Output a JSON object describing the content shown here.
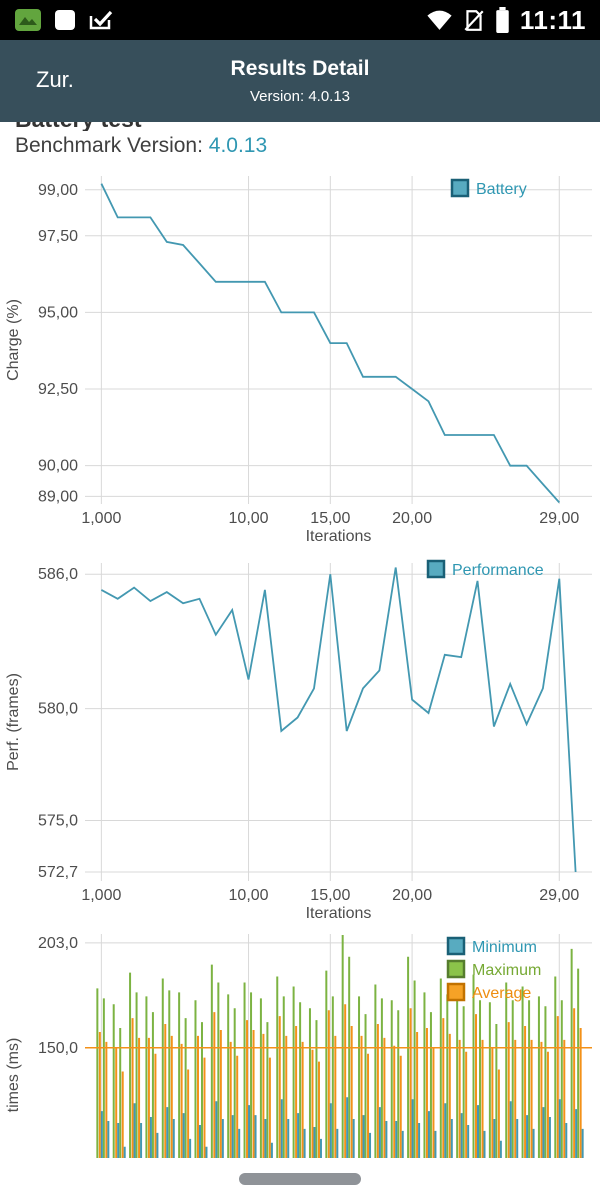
{
  "status_bar": {
    "time": "11:11",
    "left_icons": [
      "app-green-icon",
      "screenshot-square-icon",
      "check-task-icon"
    ],
    "right_icons": [
      "wifi-icon",
      "no-sim-icon",
      "battery-icon"
    ]
  },
  "app_bar": {
    "back_label": "Zur.",
    "title": "Results Detail",
    "subtitle": "Version: 4.0.13"
  },
  "page": {
    "clipped_heading": "Battery test",
    "benchmark_label": "Benchmark Version: ",
    "benchmark_value": "4.0.13"
  },
  "colors": {
    "app_bar": "#374f5b",
    "accent_teal": "#2f97b2",
    "grid": "#d8d8d8",
    "axis_text": "#4d4d4d",
    "series": {
      "teal": {
        "line": "#4398b1",
        "fill": "#58abc0",
        "border": "#1a6076",
        "text": "#2f97b2"
      },
      "green": {
        "line": "#7cb342",
        "fill": "#8bc34a",
        "border": "#567d2e",
        "text": "#76a934"
      },
      "orange": {
        "line": "#f39119",
        "fill": "#f6a226",
        "border": "#c27200",
        "text": "#ee8d10"
      }
    }
  },
  "chart_data": [
    {
      "id": "battery",
      "type": "line",
      "title": "",
      "ylabel": "Charge (%)",
      "xlabel": "Iterations",
      "legend": [
        {
          "label": "Battery",
          "color": "teal"
        }
      ],
      "ylim": [
        88.75,
        99.45
      ],
      "xlim": [
        0,
        31
      ],
      "x_start": 1,
      "yticks": [
        {
          "v": 99.0,
          "label": "99,00"
        },
        {
          "v": 97.5,
          "label": "97,50"
        },
        {
          "v": 95.0,
          "label": "95,00"
        },
        {
          "v": 92.5,
          "label": "92,50"
        },
        {
          "v": 90.0,
          "label": "90,00"
        },
        {
          "v": 89.0,
          "label": "89,00"
        }
      ],
      "xticks": [
        {
          "v": 1,
          "label": "1,000"
        },
        {
          "v": 10,
          "label": "10,00"
        },
        {
          "v": 15,
          "label": "15,00"
        },
        {
          "v": 20,
          "label": "20,00"
        },
        {
          "v": 29,
          "label": "29,00"
        }
      ],
      "series": [
        {
          "name": "Battery",
          "color": "teal",
          "values": [
            99.2,
            98.1,
            98.1,
            98.1,
            97.3,
            97.2,
            96.6,
            96.0,
            96.0,
            96.0,
            96.0,
            95.0,
            95.0,
            95.0,
            94.0,
            94.0,
            92.9,
            92.9,
            92.9,
            92.5,
            92.1,
            91.0,
            91.0,
            91.0,
            91.0,
            90.0,
            90.0,
            89.4,
            88.8
          ]
        }
      ]
    },
    {
      "id": "performance",
      "type": "line",
      "title": "",
      "ylabel": "Perf. (frames)",
      "xlabel": "Iterations",
      "legend": [
        {
          "label": "Performance",
          "color": "teal"
        }
      ],
      "ylim": [
        572.3,
        586.5
      ],
      "xlim": [
        0,
        31
      ],
      "x_start": 1,
      "yticks": [
        {
          "v": 586.0,
          "label": "586,0"
        },
        {
          "v": 580.0,
          "label": "580,0"
        },
        {
          "v": 575.0,
          "label": "575,0"
        },
        {
          "v": 572.7,
          "label": "572,7"
        }
      ],
      "xticks": [
        {
          "v": 1,
          "label": "1,000"
        },
        {
          "v": 10,
          "label": "10,00"
        },
        {
          "v": 15,
          "label": "15,00"
        },
        {
          "v": 20,
          "label": "20,00"
        },
        {
          "v": 29,
          "label": "29,00"
        }
      ],
      "series": [
        {
          "name": "Performance",
          "color": "teal",
          "values": [
            585.3,
            584.9,
            585.4,
            584.8,
            585.2,
            584.7,
            584.9,
            583.3,
            584.4,
            581.3,
            585.3,
            579.0,
            579.6,
            580.9,
            586.0,
            579.0,
            580.9,
            581.7,
            586.3,
            580.4,
            579.8,
            582.4,
            582.3,
            585.7,
            579.2,
            581.1,
            579.3,
            580.9,
            585.8,
            572.7
          ]
        }
      ]
    },
    {
      "id": "frametimes",
      "type": "impulse",
      "title": "",
      "ylabel": "times (ms)",
      "xlabel": "",
      "legend": [
        {
          "label": "Minimum",
          "color": "teal"
        },
        {
          "label": "Maximum",
          "color": "green"
        },
        {
          "label": "Average",
          "color": "orange"
        }
      ],
      "ylim": [
        65,
        207.5
      ],
      "xlim": [
        0,
        31
      ],
      "x_start": 1,
      "yticks": [
        {
          "v": 203.0,
          "label": "203,0"
        },
        {
          "v": 150.0,
          "label": "150,0"
        }
      ],
      "xticks": [
        {
          "v": 1
        },
        {
          "v": 10
        },
        {
          "v": 15
        },
        {
          "v": 20
        },
        {
          "v": 29
        }
      ],
      "hline": {
        "v": 150,
        "color": "orange"
      },
      "series": [
        {
          "name": "Maximum",
          "color": "green",
          "values": [
            180,
            172,
            188,
            176,
            185,
            178,
            174,
            192,
            177,
            183,
            175,
            186,
            181,
            170,
            189,
            207,
            176,
            182,
            174,
            196,
            178,
            185,
            177,
            187,
            173,
            183,
            181,
            176,
            186,
            200
          ]
        },
        {
          "name": "Average",
          "color": "orange",
          "values": [
            158,
            150,
            165,
            155,
            162,
            152,
            156,
            168,
            153,
            164,
            157,
            166,
            161,
            149,
            169,
            172,
            156,
            162,
            151,
            170,
            160,
            165,
            154,
            167,
            150,
            163,
            161,
            153,
            166,
            170
          ]
        },
        {
          "name": "Minimum",
          "color": "teal",
          "values": [
            118,
            112,
            122,
            115,
            120,
            117,
            111,
            123,
            116,
            121,
            114,
            124,
            117,
            110,
            122,
            125,
            116,
            120,
            113,
            124,
            118,
            122,
            117,
            121,
            114,
            123,
            116,
            120,
            124,
            119
          ]
        }
      ]
    }
  ]
}
